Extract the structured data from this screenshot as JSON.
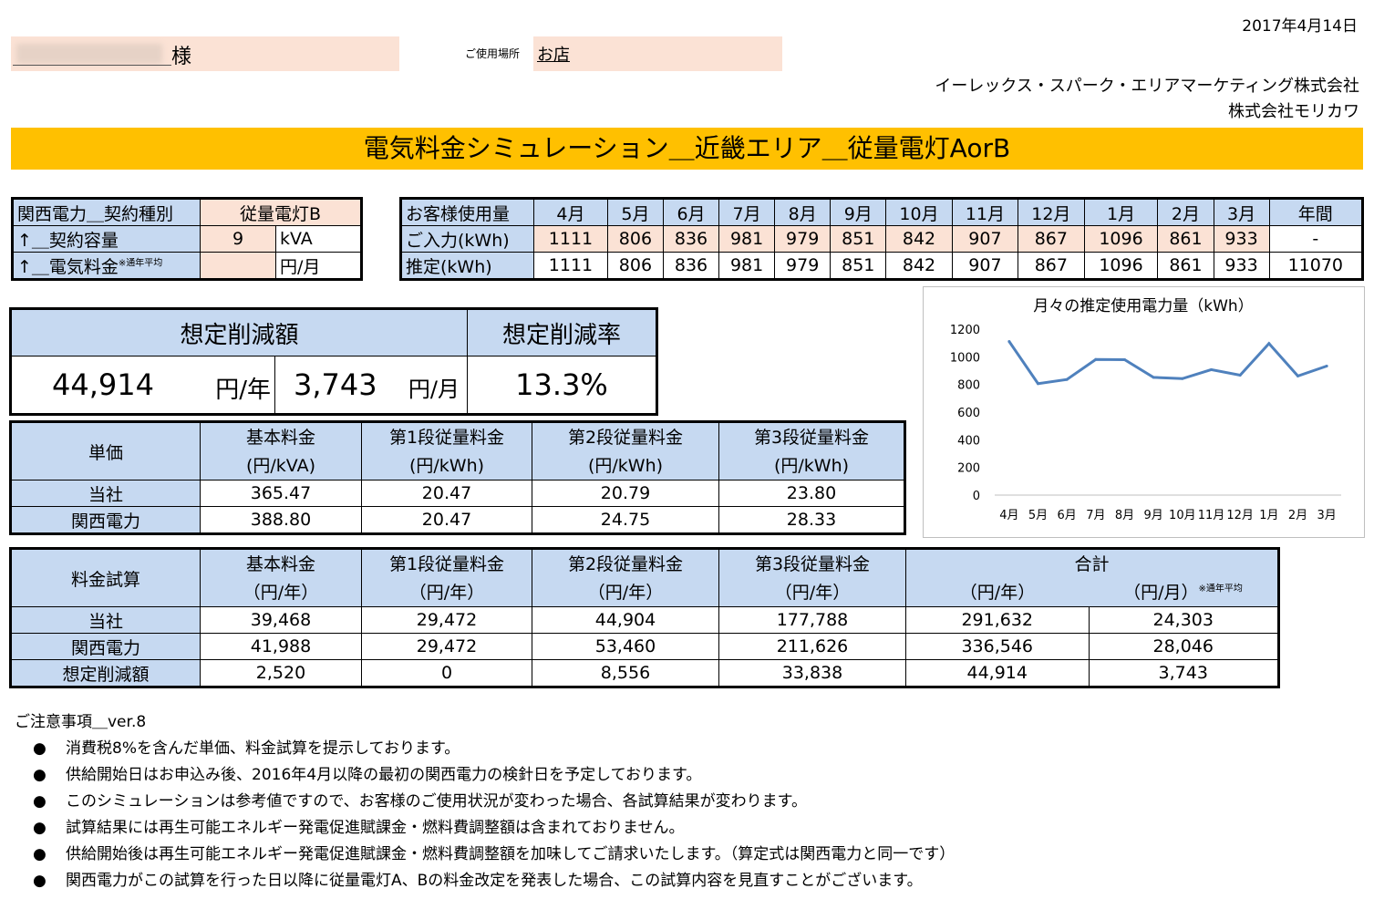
{
  "date": "2017年4月14日",
  "customer": {
    "suffix": "様",
    "place_label": "ご使用場所",
    "place": "お店"
  },
  "companies": [
    "イーレックス・スパーク・エリアマーケティング株式会社",
    "株式会社モリカワ"
  ],
  "title": "電気料金シミュレーション＿近畿エリア＿従量電灯AorB",
  "contract": {
    "rows": [
      {
        "label": "関西電力＿契約種別",
        "value": "従量電灯B",
        "unit": ""
      },
      {
        "label": "↑＿契約容量",
        "value": "9",
        "unit": "kVA"
      },
      {
        "label": "↑＿電気料金",
        "note": "※通年平均",
        "value": "",
        "unit": "円/月"
      }
    ]
  },
  "usage": {
    "header": "お客様使用量",
    "months": [
      "4月",
      "5月",
      "6月",
      "7月",
      "8月",
      "9月",
      "10月",
      "11月",
      "12月",
      "1月",
      "2月",
      "3月",
      "年間"
    ],
    "input_label": "ご入力(kWh)",
    "input": [
      "1111",
      "806",
      "836",
      "981",
      "979",
      "851",
      "842",
      "907",
      "867",
      "1096",
      "861",
      "933",
      "-"
    ],
    "est_label": "推定(kWh)",
    "est": [
      "1111",
      "806",
      "836",
      "981",
      "979",
      "851",
      "842",
      "907",
      "867",
      "1096",
      "861",
      "933",
      "11070"
    ]
  },
  "savings": {
    "amount_label": "想定削減額",
    "rate_label": "想定削減率",
    "yearly": "44,914",
    "yearly_unit": "円/年",
    "monthly": "3,743",
    "monthly_unit": "円/月",
    "rate": "13.3%"
  },
  "unit_price": {
    "label": "単価",
    "headers": [
      "基本料金",
      "第1段従量料金",
      "第2段従量料金",
      "第3段従量料金"
    ],
    "units": [
      "(円/kVA)",
      "(円/kWh)",
      "(円/kWh)",
      "(円/kWh)"
    ],
    "rows": [
      {
        "name": "当社",
        "values": [
          "365.47",
          "20.47",
          "20.79",
          "23.80"
        ]
      },
      {
        "name": "関西電力",
        "values": [
          "388.80",
          "20.47",
          "24.75",
          "28.33"
        ]
      }
    ]
  },
  "fee_calc": {
    "label": "料金試算",
    "headers": [
      "基本料金",
      "第1段従量料金",
      "第2段従量料金",
      "第3段従量料金",
      "合計"
    ],
    "units": [
      "（円/年）",
      "（円/年）",
      "（円/年）",
      "（円/年）",
      "（円/年）",
      "（円/月）"
    ],
    "unit_note": "※通年平均",
    "rows": [
      {
        "name": "当社",
        "values": [
          "39,468",
          "29,472",
          "44,904",
          "177,788",
          "291,632",
          "24,303"
        ]
      },
      {
        "name": "関西電力",
        "values": [
          "41,988",
          "29,472",
          "53,460",
          "211,626",
          "336,546",
          "28,046"
        ]
      },
      {
        "name": "想定削減額",
        "values": [
          "2,520",
          "0",
          "8,556",
          "33,838",
          "44,914",
          "3,743"
        ]
      }
    ]
  },
  "notes": {
    "title": "ご注意事項＿ver.8",
    "bullet": "●",
    "items": [
      "消費税8%を含んだ単価、料金試算を提示しております。",
      "供給開始日はお申込み後、2016年4月以降の最初の関西電力の検針日を予定しております。",
      "このシミュレーションは参考値ですので、お客様のご使用状況が変わった場合、各試算結果が変わります。",
      "試算結果には再生可能エネルギー発電促進賦課金・燃料費調整額は含まれておりません。",
      "供給開始後は再生可能エネルギー発電促進賦課金・燃料費調整額を加味してご請求いたします。（算定式は関西電力と同一です）",
      "関西電力がこの試算を行った日以降に従量電灯A、Bの料金改定を発表した場合、この試算内容を見直すことがございます。"
    ]
  },
  "chart_data": {
    "type": "line",
    "title": "月々の推定使用電力量（kWh）",
    "categories": [
      "4月",
      "5月",
      "6月",
      "7月",
      "8月",
      "9月",
      "10月",
      "11月",
      "12月",
      "1月",
      "2月",
      "3月"
    ],
    "values": [
      1111,
      806,
      836,
      981,
      979,
      851,
      842,
      907,
      867,
      1096,
      861,
      933
    ],
    "yticks": [
      0,
      200,
      400,
      600,
      800,
      1000,
      1200
    ],
    "ylim": [
      0,
      1200
    ],
    "color": "#4f81bd"
  }
}
